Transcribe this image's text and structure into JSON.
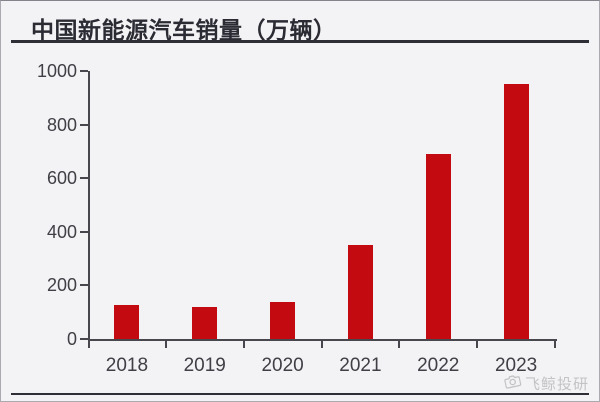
{
  "header": {
    "title": "中国新能源汽车销量（万辆）"
  },
  "watermark": {
    "icon": "weibo-camera-icon",
    "text": "飞鲸投研"
  },
  "colors": {
    "background": "#f3f3f5",
    "bar": "#c30a10",
    "axis": "#47474d",
    "title": "#2b2b34",
    "tick_label": "#3f3f45",
    "watermark": "#b3b3b8"
  },
  "chart_data": {
    "type": "bar",
    "title": "中国新能源汽车销量（万辆）",
    "categories": [
      "2018",
      "2019",
      "2020",
      "2021",
      "2022",
      "2023"
    ],
    "values": [
      126,
      121,
      137,
      352,
      689,
      950
    ],
    "xlabel": "",
    "ylabel": "",
    "ylim": [
      0,
      1000
    ],
    "yticks": [
      0,
      200,
      400,
      600,
      800,
      1000
    ],
    "grid": false,
    "legend": "none",
    "bar_color": "#c30a10"
  }
}
